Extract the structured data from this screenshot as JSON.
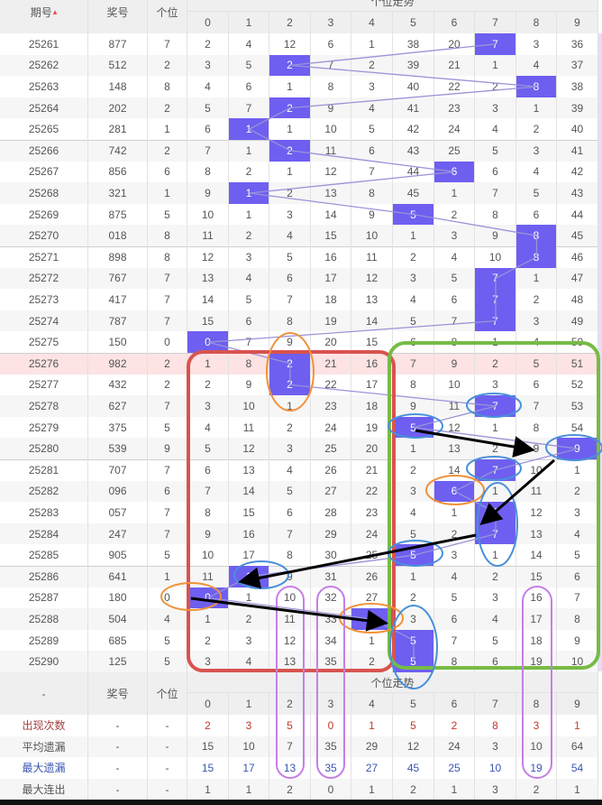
{
  "header": {
    "issue_label": "期号",
    "sort_icon": "sort-up-down-icon",
    "prize_label": "奖号",
    "unit_label": "个位",
    "trend_label": "个位走势",
    "digits": [
      "0",
      "1",
      "2",
      "3",
      "4",
      "5",
      "6",
      "7",
      "8",
      "9"
    ]
  },
  "colors": {
    "hit": "#6e5ff0",
    "highlight_row": "#fde3e3",
    "trend_line": "#9a93d8"
  },
  "highlighted_issue": "25276",
  "rows": [
    {
      "issue": "25261",
      "prize": "877",
      "unit": "7",
      "cells": [
        "2",
        "4",
        "12",
        "6",
        "1",
        "38",
        "20",
        "7",
        "3",
        "36"
      ]
    },
    {
      "issue": "25262",
      "prize": "512",
      "unit": "2",
      "cells": [
        "3",
        "5",
        "2",
        "7",
        "2",
        "39",
        "21",
        "1",
        "4",
        "37"
      ]
    },
    {
      "issue": "25263",
      "prize": "148",
      "unit": "8",
      "cells": [
        "4",
        "6",
        "1",
        "8",
        "3",
        "40",
        "22",
        "2",
        "8",
        "38"
      ]
    },
    {
      "issue": "25264",
      "prize": "202",
      "unit": "2",
      "cells": [
        "5",
        "7",
        "2",
        "9",
        "4",
        "41",
        "23",
        "3",
        "1",
        "39"
      ]
    },
    {
      "issue": "25265",
      "prize": "281",
      "unit": "1",
      "cells": [
        "6",
        "1",
        "1",
        "10",
        "5",
        "42",
        "24",
        "4",
        "2",
        "40"
      ]
    },
    {
      "issue": "25266",
      "prize": "742",
      "unit": "2",
      "cells": [
        "7",
        "1",
        "2",
        "11",
        "6",
        "43",
        "25",
        "5",
        "3",
        "41"
      ]
    },
    {
      "issue": "25267",
      "prize": "856",
      "unit": "6",
      "cells": [
        "8",
        "2",
        "1",
        "12",
        "7",
        "44",
        "6",
        "6",
        "4",
        "42"
      ]
    },
    {
      "issue": "25268",
      "prize": "321",
      "unit": "1",
      "cells": [
        "9",
        "1",
        "2",
        "13",
        "8",
        "45",
        "1",
        "7",
        "5",
        "43"
      ]
    },
    {
      "issue": "25269",
      "prize": "875",
      "unit": "5",
      "cells": [
        "10",
        "1",
        "3",
        "14",
        "9",
        "5",
        "2",
        "8",
        "6",
        "44"
      ]
    },
    {
      "issue": "25270",
      "prize": "018",
      "unit": "8",
      "cells": [
        "11",
        "2",
        "4",
        "15",
        "10",
        "1",
        "3",
        "9",
        "8",
        "45"
      ]
    },
    {
      "issue": "25271",
      "prize": "898",
      "unit": "8",
      "cells": [
        "12",
        "3",
        "5",
        "16",
        "11",
        "2",
        "4",
        "10",
        "8",
        "46"
      ]
    },
    {
      "issue": "25272",
      "prize": "767",
      "unit": "7",
      "cells": [
        "13",
        "4",
        "6",
        "17",
        "12",
        "3",
        "5",
        "7",
        "1",
        "47"
      ]
    },
    {
      "issue": "25273",
      "prize": "417",
      "unit": "7",
      "cells": [
        "14",
        "5",
        "7",
        "18",
        "13",
        "4",
        "6",
        "7",
        "2",
        "48"
      ]
    },
    {
      "issue": "25274",
      "prize": "787",
      "unit": "7",
      "cells": [
        "15",
        "6",
        "8",
        "19",
        "14",
        "5",
        "7",
        "7",
        "3",
        "49"
      ]
    },
    {
      "issue": "25275",
      "prize": "150",
      "unit": "0",
      "cells": [
        "0",
        "7",
        "9",
        "20",
        "15",
        "6",
        "8",
        "1",
        "4",
        "50"
      ]
    },
    {
      "issue": "25276",
      "prize": "982",
      "unit": "2",
      "cells": [
        "1",
        "8",
        "2",
        "21",
        "16",
        "7",
        "9",
        "2",
        "5",
        "51"
      ]
    },
    {
      "issue": "25277",
      "prize": "432",
      "unit": "2",
      "cells": [
        "2",
        "9",
        "2",
        "22",
        "17",
        "8",
        "10",
        "3",
        "6",
        "52"
      ]
    },
    {
      "issue": "25278",
      "prize": "627",
      "unit": "7",
      "cells": [
        "3",
        "10",
        "1",
        "23",
        "18",
        "9",
        "11",
        "7",
        "7",
        "53"
      ]
    },
    {
      "issue": "25279",
      "prize": "375",
      "unit": "5",
      "cells": [
        "4",
        "11",
        "2",
        "24",
        "19",
        "5",
        "12",
        "1",
        "8",
        "54"
      ]
    },
    {
      "issue": "25280",
      "prize": "539",
      "unit": "9",
      "cells": [
        "5",
        "12",
        "3",
        "25",
        "20",
        "1",
        "13",
        "2",
        "9",
        "9"
      ]
    },
    {
      "issue": "25281",
      "prize": "707",
      "unit": "7",
      "cells": [
        "6",
        "13",
        "4",
        "26",
        "21",
        "2",
        "14",
        "7",
        "10",
        "1"
      ]
    },
    {
      "issue": "25282",
      "prize": "096",
      "unit": "6",
      "cells": [
        "7",
        "14",
        "5",
        "27",
        "22",
        "3",
        "6",
        "1",
        "11",
        "2"
      ]
    },
    {
      "issue": "25283",
      "prize": "057",
      "unit": "7",
      "cells": [
        "8",
        "15",
        "6",
        "28",
        "23",
        "4",
        "1",
        "7",
        "12",
        "3"
      ]
    },
    {
      "issue": "25284",
      "prize": "247",
      "unit": "7",
      "cells": [
        "9",
        "16",
        "7",
        "29",
        "24",
        "5",
        "2",
        "7",
        "13",
        "4"
      ]
    },
    {
      "issue": "25285",
      "prize": "905",
      "unit": "5",
      "cells": [
        "10",
        "17",
        "8",
        "30",
        "25",
        "5",
        "3",
        "1",
        "14",
        "5"
      ]
    },
    {
      "issue": "25286",
      "prize": "641",
      "unit": "1",
      "cells": [
        "11",
        "1",
        "9",
        "31",
        "26",
        "1",
        "4",
        "2",
        "15",
        "6"
      ]
    },
    {
      "issue": "25287",
      "prize": "180",
      "unit": "0",
      "cells": [
        "0",
        "1",
        "10",
        "32",
        "27",
        "2",
        "5",
        "3",
        "16",
        "7"
      ]
    },
    {
      "issue": "25288",
      "prize": "504",
      "unit": "4",
      "cells": [
        "1",
        "2",
        "11",
        "33",
        "4",
        "3",
        "6",
        "4",
        "17",
        "8"
      ]
    },
    {
      "issue": "25289",
      "prize": "685",
      "unit": "5",
      "cells": [
        "2",
        "3",
        "12",
        "34",
        "1",
        "5",
        "7",
        "5",
        "18",
        "9"
      ]
    },
    {
      "issue": "25290",
      "prize": "125",
      "unit": "5",
      "cells": [
        "3",
        "4",
        "13",
        "35",
        "2",
        "5",
        "8",
        "6",
        "19",
        "10"
      ]
    }
  ],
  "footer_header": {
    "issue_label": "-",
    "prize_label": "奖号",
    "unit_label": "个位",
    "trend_label": "个位走势"
  },
  "stats": [
    {
      "label": "出现次数",
      "prize": "-",
      "unit": "-",
      "style": "red",
      "values": [
        "2",
        "3",
        "5",
        "0",
        "1",
        "5",
        "2",
        "8",
        "3",
        "1"
      ]
    },
    {
      "label": "平均遗漏",
      "prize": "-",
      "unit": "-",
      "style": "dark",
      "values": [
        "15",
        "10",
        "7",
        "35",
        "29",
        "12",
        "24",
        "3",
        "10",
        "64"
      ]
    },
    {
      "label": "最大遗漏",
      "prize": "-",
      "unit": "-",
      "style": "blue",
      "values": [
        "15",
        "17",
        "13",
        "35",
        "27",
        "45",
        "25",
        "10",
        "19",
        "54"
      ]
    },
    {
      "label": "最大连出",
      "prize": "-",
      "unit": "-",
      "style": "dark",
      "values": [
        "1",
        "1",
        "2",
        "0",
        "1",
        "2",
        "1",
        "3",
        "2",
        "1"
      ]
    }
  ]
}
